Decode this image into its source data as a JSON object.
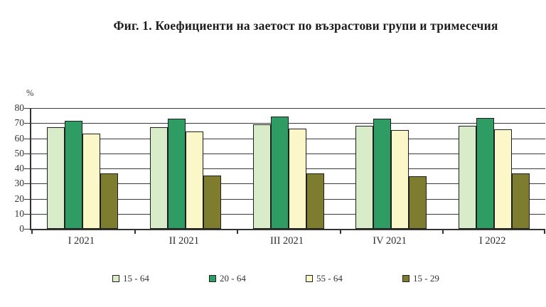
{
  "title": "Фиг. 1. Коефициенти на заетост по възрастови групи и тримесечия",
  "chart_data": {
    "type": "bar",
    "title": "Фиг. 1. Коефициенти на заетост по възрастови групи и тримесечия",
    "xlabel": "",
    "ylabel": "%",
    "ylim": [
      0,
      80
    ],
    "ytick_step": 10,
    "grid": true,
    "legend_position": "bottom",
    "categories": [
      "I 2021",
      "II 2021",
      "III 2021",
      "IV 2021",
      "I 2022"
    ],
    "series": [
      {
        "name": "15 - 64",
        "color": "#d9ecc9",
        "values": [
          67.2,
          67.5,
          69.2,
          68.1,
          68.1
        ]
      },
      {
        "name": "20 - 64",
        "color": "#2f9c64",
        "values": [
          71.5,
          72.8,
          74.4,
          73.1,
          73.4
        ]
      },
      {
        "name": "55 - 64",
        "color": "#fbf7c9",
        "values": [
          63.0,
          64.4,
          66.2,
          65.3,
          66.0
        ]
      },
      {
        "name": "15 - 29",
        "color": "#7e7d2f",
        "values": [
          36.8,
          35.3,
          36.8,
          34.6,
          36.8
        ]
      }
    ]
  }
}
